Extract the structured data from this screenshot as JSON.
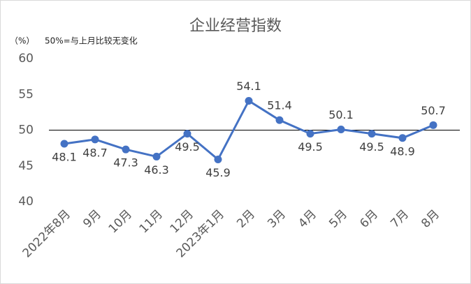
{
  "chart_data": {
    "type": "line",
    "title": "企业经营指数",
    "annotations": [
      "（%）",
      "50%=与上月比较无变化"
    ],
    "categories": [
      "2022年8月",
      "9月",
      "10月",
      "11月",
      "12月",
      "2023年1月",
      "2月",
      "3月",
      "4月",
      "5月",
      "6月",
      "7月",
      "8月"
    ],
    "values": [
      48.1,
      48.7,
      47.3,
      46.3,
      49.5,
      45.9,
      54.1,
      51.4,
      49.5,
      50.1,
      49.5,
      48.9,
      50.7
    ],
    "color": "#4472c4",
    "ylim": [
      40,
      60
    ],
    "yticks": [
      40,
      45,
      50,
      55,
      60
    ],
    "reference_line": 50,
    "grid": false
  }
}
